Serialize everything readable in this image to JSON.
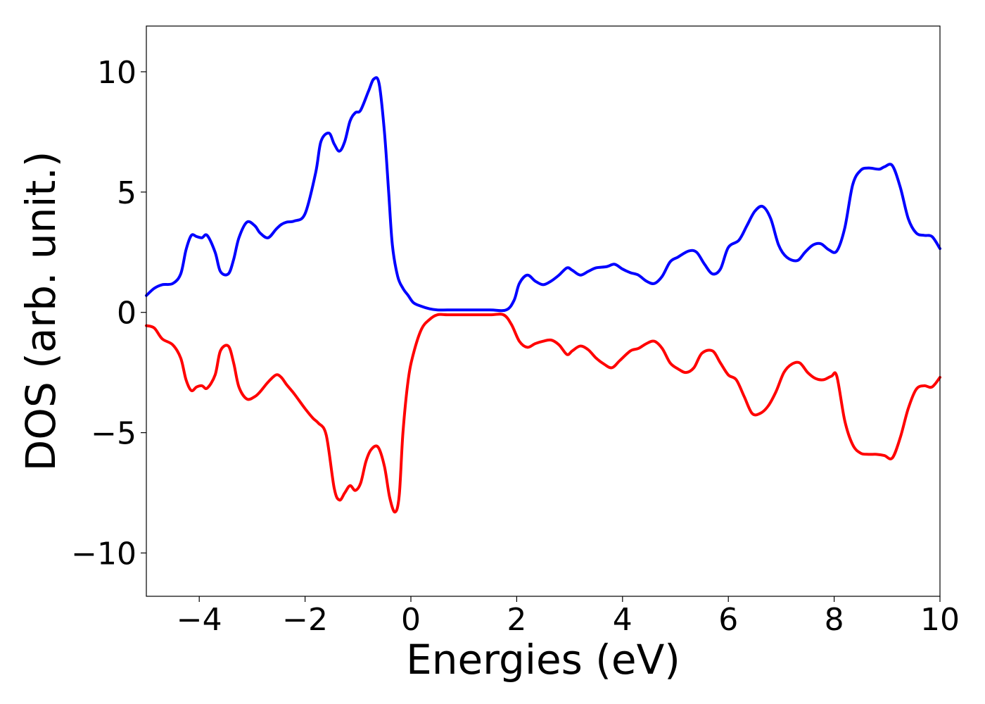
{
  "chart_data": {
    "type": "line",
    "title": "",
    "xlabel": "Energies (eV)",
    "ylabel": "DOS (arb. unit.)",
    "xlim": [
      -5,
      10
    ],
    "ylim": [
      -11.8,
      11.9
    ],
    "grid": false,
    "legend": "none",
    "x_ticks": [
      -4,
      -2,
      0,
      2,
      4,
      6,
      8,
      10
    ],
    "x_tick_labels": [
      "−4",
      "−2",
      "0",
      "2",
      "4",
      "6",
      "8",
      "10"
    ],
    "y_ticks": [
      10,
      5,
      0,
      -5,
      -10
    ],
    "y_tick_labels": [
      "10",
      "5",
      "0",
      "−5",
      "−10"
    ],
    "series": [
      {
        "color": "#0000ff",
        "x": [
          -5.0,
          -4.85,
          -4.7,
          -4.5,
          -4.35,
          -4.25,
          -4.15,
          -4.05,
          -3.95,
          -3.85,
          -3.7,
          -3.6,
          -3.45,
          -3.35,
          -3.25,
          -3.1,
          -2.95,
          -2.85,
          -2.7,
          -2.55,
          -2.45,
          -2.35,
          -2.2,
          -2.0,
          -1.8,
          -1.7,
          -1.55,
          -1.45,
          -1.35,
          -1.25,
          -1.15,
          -1.05,
          -0.95,
          -0.8,
          -0.7,
          -0.6,
          -0.5,
          -0.42,
          -0.35,
          -0.25,
          -0.15,
          -0.05,
          0.05,
          0.2,
          0.35,
          0.5,
          0.7,
          1.0,
          1.5,
          1.8,
          1.95,
          2.05,
          2.2,
          2.35,
          2.5,
          2.65,
          2.8,
          2.95,
          3.05,
          3.2,
          3.35,
          3.5,
          3.7,
          3.85,
          4.0,
          4.15,
          4.3,
          4.45,
          4.6,
          4.75,
          4.9,
          5.05,
          5.25,
          5.4,
          5.55,
          5.7,
          5.85,
          6.0,
          6.2,
          6.35,
          6.5,
          6.65,
          6.8,
          6.95,
          7.1,
          7.3,
          7.45,
          7.6,
          7.75,
          7.9,
          8.05,
          8.2,
          8.35,
          8.5,
          8.65,
          8.85,
          8.95,
          9.1,
          9.25,
          9.4,
          9.55,
          9.7,
          9.85,
          10.0
        ],
        "y": [
          0.7,
          1.0,
          1.15,
          1.2,
          1.6,
          2.6,
          3.2,
          3.15,
          3.1,
          3.2,
          2.5,
          1.7,
          1.6,
          2.2,
          3.1,
          3.75,
          3.6,
          3.3,
          3.1,
          3.45,
          3.65,
          3.75,
          3.8,
          4.1,
          5.8,
          7.1,
          7.45,
          7.0,
          6.7,
          7.1,
          7.95,
          8.3,
          8.4,
          9.2,
          9.7,
          9.5,
          7.5,
          5.0,
          2.8,
          1.5,
          1.0,
          0.7,
          0.4,
          0.25,
          0.15,
          0.1,
          0.1,
          0.1,
          0.1,
          0.1,
          0.5,
          1.2,
          1.55,
          1.3,
          1.15,
          1.3,
          1.55,
          1.85,
          1.75,
          1.55,
          1.7,
          1.85,
          1.9,
          2.0,
          1.8,
          1.65,
          1.55,
          1.3,
          1.2,
          1.5,
          2.1,
          2.3,
          2.55,
          2.5,
          2.0,
          1.6,
          1.8,
          2.7,
          3.0,
          3.6,
          4.2,
          4.4,
          3.9,
          2.8,
          2.3,
          2.15,
          2.5,
          2.8,
          2.85,
          2.6,
          2.55,
          3.5,
          5.3,
          5.9,
          6.0,
          5.95,
          6.05,
          6.1,
          5.2,
          3.9,
          3.3,
          3.2,
          3.15,
          2.65
        ]
      },
      {
        "color": "#ff0000",
        "x": [
          -5.0,
          -4.85,
          -4.7,
          -4.5,
          -4.35,
          -4.25,
          -4.15,
          -4.05,
          -3.95,
          -3.85,
          -3.7,
          -3.6,
          -3.45,
          -3.35,
          -3.25,
          -3.1,
          -2.95,
          -2.85,
          -2.7,
          -2.55,
          -2.45,
          -2.35,
          -2.2,
          -2.0,
          -1.85,
          -1.75,
          -1.6,
          -1.45,
          -1.35,
          -1.25,
          -1.15,
          -1.05,
          -0.95,
          -0.85,
          -0.75,
          -0.62,
          -0.5,
          -0.4,
          -0.3,
          -0.22,
          -0.15,
          -0.05,
          0.05,
          0.2,
          0.35,
          0.5,
          0.7,
          1.0,
          1.5,
          1.75,
          1.9,
          2.05,
          2.2,
          2.35,
          2.5,
          2.65,
          2.8,
          2.95,
          3.05,
          3.2,
          3.35,
          3.5,
          3.65,
          3.8,
          3.95,
          4.15,
          4.3,
          4.45,
          4.6,
          4.75,
          4.9,
          5.05,
          5.2,
          5.35,
          5.5,
          5.7,
          5.85,
          6.0,
          6.15,
          6.3,
          6.45,
          6.6,
          6.75,
          6.9,
          7.05,
          7.2,
          7.35,
          7.5,
          7.65,
          7.8,
          7.95,
          8.05,
          8.2,
          8.35,
          8.5,
          8.65,
          8.8,
          8.95,
          9.1,
          9.25,
          9.4,
          9.55,
          9.7,
          9.85,
          10.0
        ],
        "y": [
          -0.55,
          -0.65,
          -1.1,
          -1.35,
          -1.9,
          -2.8,
          -3.25,
          -3.1,
          -3.05,
          -3.15,
          -2.6,
          -1.6,
          -1.4,
          -2.1,
          -3.1,
          -3.6,
          -3.5,
          -3.3,
          -2.9,
          -2.6,
          -2.7,
          -3.0,
          -3.4,
          -4.0,
          -4.4,
          -4.6,
          -5.1,
          -7.3,
          -7.8,
          -7.5,
          -7.2,
          -7.4,
          -7.1,
          -6.2,
          -5.7,
          -5.6,
          -6.4,
          -7.7,
          -8.3,
          -7.6,
          -5.0,
          -2.8,
          -1.7,
          -0.7,
          -0.3,
          -0.1,
          -0.1,
          -0.1,
          -0.1,
          -0.1,
          -0.5,
          -1.2,
          -1.45,
          -1.3,
          -1.2,
          -1.15,
          -1.35,
          -1.75,
          -1.6,
          -1.4,
          -1.55,
          -1.9,
          -2.15,
          -2.3,
          -2.0,
          -1.6,
          -1.5,
          -1.3,
          -1.2,
          -1.5,
          -2.1,
          -2.35,
          -2.5,
          -2.3,
          -1.7,
          -1.6,
          -2.1,
          -2.6,
          -2.8,
          -3.5,
          -4.2,
          -4.2,
          -3.9,
          -3.3,
          -2.5,
          -2.15,
          -2.1,
          -2.5,
          -2.75,
          -2.8,
          -2.65,
          -2.65,
          -4.5,
          -5.5,
          -5.85,
          -5.9,
          -5.9,
          -5.95,
          -6.05,
          -5.2,
          -4.0,
          -3.2,
          -3.05,
          -3.1,
          -2.7
        ]
      }
    ]
  }
}
